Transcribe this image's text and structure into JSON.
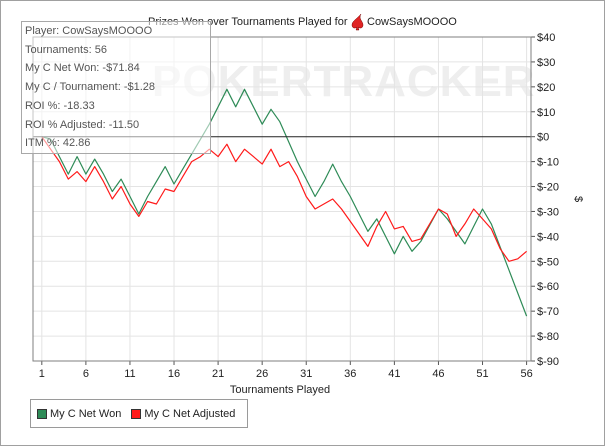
{
  "chart_data": {
    "type": "line",
    "title": "Prizes Won over Tournaments Played for",
    "title_player": "CowSaysMOOOO",
    "watermark": "POKERTRACKER",
    "xlabel": "Tournaments Played",
    "ylabel": "$",
    "xlim": [
      0,
      56.5
    ],
    "ylim": [
      -90,
      40
    ],
    "x_ticks": [
      1,
      6,
      11,
      16,
      21,
      26,
      31,
      36,
      41,
      46,
      51,
      56
    ],
    "y_ticks": [
      {
        "value": 40,
        "label": "$40"
      },
      {
        "value": 30,
        "label": "$30"
      },
      {
        "value": 20,
        "label": "$20"
      },
      {
        "value": 10,
        "label": "$10"
      },
      {
        "value": 0,
        "label": "$0"
      },
      {
        "value": -10,
        "label": "$-10"
      },
      {
        "value": -20,
        "label": "$-20"
      },
      {
        "value": -30,
        "label": "$-30"
      },
      {
        "value": -40,
        "label": "$-40"
      },
      {
        "value": -50,
        "label": "$-50"
      },
      {
        "value": -60,
        "label": "$-60"
      },
      {
        "value": -70,
        "label": "$-70"
      },
      {
        "value": -80,
        "label": "$-80"
      },
      {
        "value": -90,
        "label": "$-90"
      }
    ],
    "grid": true,
    "legend_position": "bottom-left",
    "series": [
      {
        "name": "My C Net Won",
        "color": "#2e8b57",
        "points": [
          [
            1,
            0
          ],
          [
            2,
            -1
          ],
          [
            3,
            -8
          ],
          [
            4,
            -15
          ],
          [
            5,
            -8
          ],
          [
            6,
            -15
          ],
          [
            7,
            -9
          ],
          [
            8,
            -15
          ],
          [
            9,
            -22
          ],
          [
            10,
            -17
          ],
          [
            11,
            -24
          ],
          [
            12,
            -31
          ],
          [
            13,
            -24
          ],
          [
            14,
            -18
          ],
          [
            15,
            -12
          ],
          [
            16,
            -19
          ],
          [
            17,
            -13
          ],
          [
            19,
            -1
          ],
          [
            20,
            5
          ],
          [
            21,
            12
          ],
          [
            22,
            19
          ],
          [
            23,
            12
          ],
          [
            24,
            19
          ],
          [
            25,
            12
          ],
          [
            26,
            5
          ],
          [
            27,
            11
          ],
          [
            28,
            6
          ],
          [
            30,
            -10
          ],
          [
            31,
            -17
          ],
          [
            32,
            -24
          ],
          [
            33,
            -18
          ],
          [
            34,
            -11
          ],
          [
            35,
            -18
          ],
          [
            36,
            -24
          ],
          [
            37,
            -31
          ],
          [
            38,
            -38
          ],
          [
            39,
            -33
          ],
          [
            40,
            -40
          ],
          [
            41,
            -47
          ],
          [
            42,
            -40
          ],
          [
            43,
            -46
          ],
          [
            44,
            -42
          ],
          [
            46,
            -29
          ],
          [
            47,
            -33
          ],
          [
            48,
            -38
          ],
          [
            49,
            -43
          ],
          [
            50,
            -36
          ],
          [
            51,
            -29
          ],
          [
            52,
            -35
          ],
          [
            56,
            -72
          ]
        ]
      },
      {
        "name": "My C Net Adjusted",
        "color": "#ff1a1a",
        "points": [
          [
            1,
            0
          ],
          [
            2,
            -5
          ],
          [
            3,
            -10
          ],
          [
            4,
            -17
          ],
          [
            5,
            -14
          ],
          [
            6,
            -18
          ],
          [
            7,
            -12
          ],
          [
            8,
            -18
          ],
          [
            9,
            -25
          ],
          [
            10,
            -20
          ],
          [
            11,
            -27
          ],
          [
            12,
            -32
          ],
          [
            13,
            -26
          ],
          [
            14,
            -27
          ],
          [
            15,
            -21
          ],
          [
            16,
            -22
          ],
          [
            17,
            -16
          ],
          [
            18,
            -10
          ],
          [
            19,
            -8
          ],
          [
            20,
            -5
          ],
          [
            21,
            -8
          ],
          [
            22,
            -3
          ],
          [
            23,
            -10
          ],
          [
            24,
            -5
          ],
          [
            25,
            -8
          ],
          [
            26,
            -11
          ],
          [
            27,
            -5
          ],
          [
            28,
            -12
          ],
          [
            29,
            -10
          ],
          [
            30,
            -16
          ],
          [
            31,
            -24
          ],
          [
            32,
            -29
          ],
          [
            33,
            -27
          ],
          [
            34,
            -25
          ],
          [
            35,
            -29
          ],
          [
            36,
            -34
          ],
          [
            37,
            -39
          ],
          [
            38,
            -44
          ],
          [
            39,
            -36
          ],
          [
            40,
            -30
          ],
          [
            41,
            -37
          ],
          [
            42,
            -36
          ],
          [
            43,
            -42
          ],
          [
            44,
            -41
          ],
          [
            46,
            -29
          ],
          [
            47,
            -31
          ],
          [
            48,
            -40
          ],
          [
            49,
            -35
          ],
          [
            50,
            -29
          ],
          [
            51,
            -33
          ],
          [
            52,
            -37
          ],
          [
            53,
            -45
          ],
          [
            54,
            -50
          ],
          [
            55,
            -49
          ],
          [
            56,
            -46
          ]
        ]
      }
    ],
    "info_box": [
      {
        "label": "Player:",
        "value": "CowSaysMOOOO"
      },
      {
        "label": "Tournaments:",
        "value": "56"
      },
      {
        "label": "My C Net Won:",
        "value": "-$71.84"
      },
      {
        "label": "My C / Tournament:",
        "value": "-$1.28"
      },
      {
        "label": "ROI %:",
        "value": "-18.33"
      },
      {
        "label": "ROI % Adjusted:",
        "value": "-11.50"
      },
      {
        "label": "ITM %:",
        "value": "42.86"
      }
    ]
  }
}
